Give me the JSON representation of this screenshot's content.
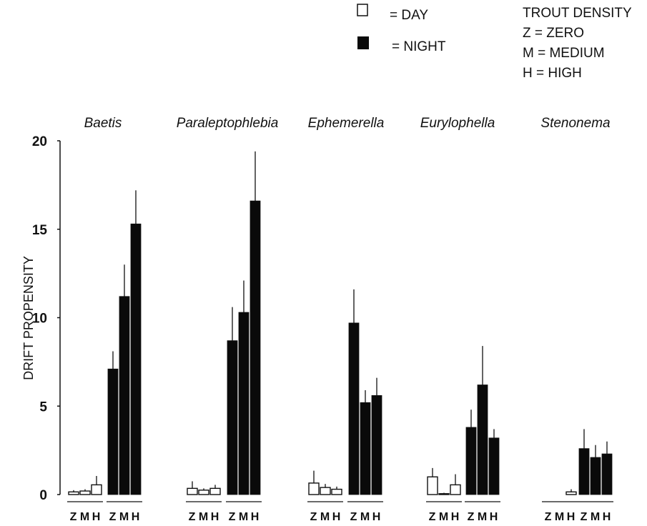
{
  "legend": {
    "day_label": "= DAY",
    "night_label": "= NIGHT",
    "density_title": "TROUT DENSITY",
    "density_items": [
      "Z = ZERO",
      "M = MEDIUM",
      "H = HIGH"
    ]
  },
  "colors": {
    "day": "#ffffff",
    "night": "#0a0a0a",
    "stroke": "#111111"
  },
  "chart_data": {
    "type": "bar",
    "ylabel": "DRIFT PROPENSITY",
    "ylim": [
      0,
      20
    ],
    "yticks": [
      "0",
      "5",
      "10",
      "15",
      "20"
    ],
    "densities": [
      "Z",
      "M",
      "H"
    ],
    "series_names": [
      "DAY",
      "NIGHT"
    ],
    "panels": [
      {
        "taxon": "Baetis",
        "day": {
          "values": [
            0.15,
            0.2,
            0.55
          ],
          "errors": [
            0.1,
            0.1,
            0.5
          ]
        },
        "night": {
          "values": [
            7.1,
            11.2,
            15.3
          ],
          "errors": [
            1.0,
            1.8,
            1.9
          ]
        }
      },
      {
        "taxon": "Paraleptophlebia",
        "day": {
          "values": [
            0.35,
            0.25,
            0.35
          ],
          "errors": [
            0.4,
            0.1,
            0.2
          ]
        },
        "night": {
          "values": [
            8.7,
            10.3,
            16.6
          ],
          "errors": [
            1.9,
            1.8,
            2.8
          ]
        }
      },
      {
        "taxon": "Ephemerella",
        "day": {
          "values": [
            0.65,
            0.4,
            0.3
          ],
          "errors": [
            0.7,
            0.2,
            0.15
          ]
        },
        "night": {
          "values": [
            9.7,
            5.2,
            5.6
          ],
          "errors": [
            1.9,
            0.7,
            1.0
          ]
        }
      },
      {
        "taxon": "Eurylophella",
        "day": {
          "values": [
            1.0,
            0.05,
            0.55
          ],
          "errors": [
            0.5,
            0.05,
            0.6
          ]
        },
        "night": {
          "values": [
            3.8,
            6.2,
            3.2
          ],
          "errors": [
            1.0,
            2.2,
            0.5
          ]
        }
      },
      {
        "taxon": "Stenonema",
        "day": {
          "values": [
            0,
            0,
            0.15
          ],
          "errors": [
            0,
            0,
            0.15
          ]
        },
        "night": {
          "values": [
            2.6,
            2.1,
            2.3
          ],
          "errors": [
            1.1,
            0.7,
            0.7
          ]
        }
      }
    ]
  }
}
